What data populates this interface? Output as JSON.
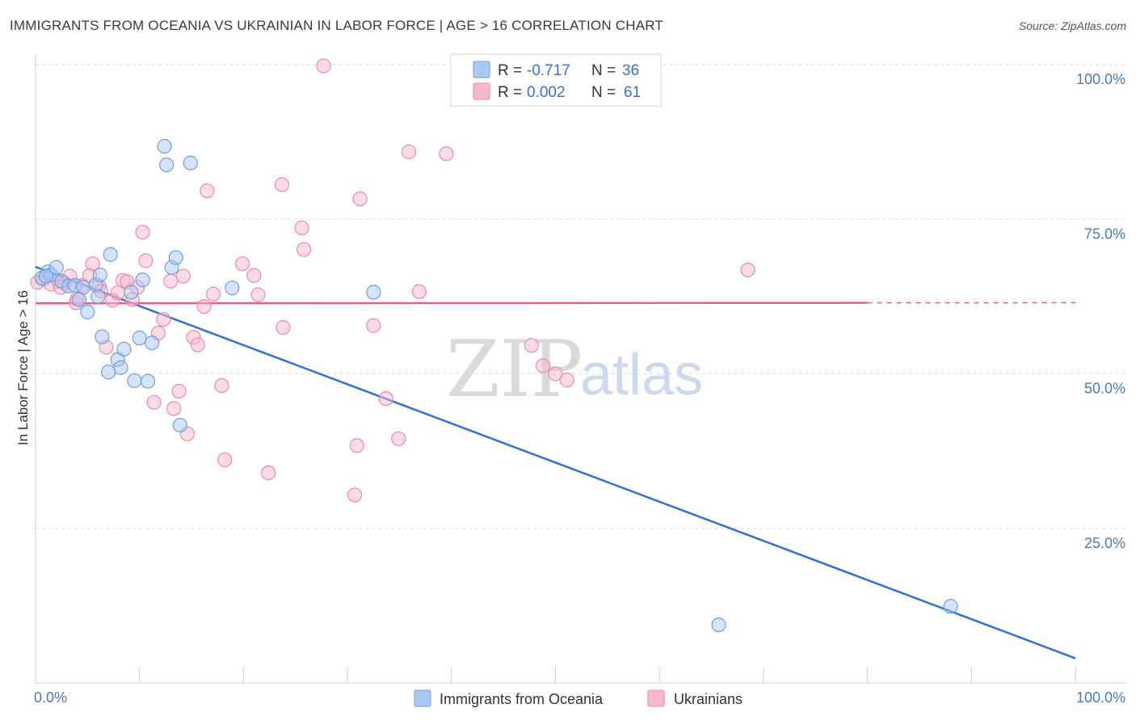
{
  "title": "IMMIGRANTS FROM OCEANIA VS UKRAINIAN IN LABOR FORCE | AGE > 16 CORRELATION CHART",
  "source": "Source: ZipAtlas.com",
  "watermark": {
    "zip": "ZIP",
    "atlas": "atlas"
  },
  "legend": {
    "rows": [
      {
        "r_label": "R =",
        "r_value": "-0.717",
        "n_label": "N =",
        "n_value": "36",
        "color": "#a9c8f2"
      },
      {
        "r_label": "R =",
        "r_value": "0.002",
        "n_label": "N =",
        "n_value": "61",
        "color": "#f7b7cc"
      }
    ]
  },
  "bottom_legend": [
    {
      "label": "Immigrants from Oceania",
      "color": "#a9c8f2"
    },
    {
      "label": "Ukrainians",
      "color": "#f7b7cc"
    }
  ],
  "chart_data": {
    "type": "scatter",
    "title": "IMMIGRANTS FROM OCEANIA VS UKRAINIAN IN LABOR FORCE | AGE > 16 CORRELATION CHART",
    "xlabel": "",
    "ylabel": "In Labor Force | Age > 16",
    "xlim": [
      0,
      100
    ],
    "ylim": [
      0,
      100
    ],
    "x_tick_labels": [
      "0.0%",
      "100.0%"
    ],
    "y_ticks": [
      25,
      50,
      75,
      100
    ],
    "y_tick_labels": [
      "25.0%",
      "50.0%",
      "75.0%",
      "100.0%"
    ],
    "grid": true,
    "series": [
      {
        "name": "Immigrants from Oceania",
        "color": "#a9c8f2",
        "stroke": "#6f9ee0",
        "trend_color": "#2f6fd6",
        "trend": {
          "x0": 0,
          "y0": 67.3,
          "x1": 100,
          "y1": 4.0,
          "dashed_from": null
        },
        "points": [
          [
            0.6,
            65.5
          ],
          [
            1.2,
            66.5
          ],
          [
            1.5,
            66.0
          ],
          [
            2.0,
            67.2
          ],
          [
            2.5,
            65.0
          ],
          [
            3.2,
            64.2
          ],
          [
            3.8,
            64.3
          ],
          [
            4.2,
            62.0
          ],
          [
            4.6,
            64.0
          ],
          [
            5.0,
            60.0
          ],
          [
            5.8,
            64.4
          ],
          [
            6.0,
            62.5
          ],
          [
            6.2,
            66.0
          ],
          [
            6.4,
            56.0
          ],
          [
            7.0,
            50.3
          ],
          [
            7.2,
            69.3
          ],
          [
            7.9,
            52.3
          ],
          [
            8.2,
            51.0
          ],
          [
            8.5,
            54.0
          ],
          [
            9.2,
            63.2
          ],
          [
            9.5,
            48.9
          ],
          [
            10.0,
            55.8
          ],
          [
            10.3,
            65.2
          ],
          [
            10.8,
            48.8
          ],
          [
            11.2,
            55.0
          ],
          [
            12.4,
            86.8
          ],
          [
            12.6,
            83.8
          ],
          [
            13.1,
            67.2
          ],
          [
            13.5,
            68.8
          ],
          [
            13.9,
            41.7
          ],
          [
            14.9,
            84.1
          ],
          [
            18.9,
            63.9
          ],
          [
            32.5,
            63.2
          ],
          [
            65.7,
            9.4
          ],
          [
            88.0,
            12.4
          ],
          [
            1.0,
            65.8
          ]
        ]
      },
      {
        "name": "Ukrainians",
        "color": "#f7b7cc",
        "stroke": "#e98aaa",
        "trend_color": "#e0608a",
        "trend": {
          "x0": 0,
          "y0": 61.4,
          "x1": 100,
          "y1": 61.5,
          "dashed_from": 80
        },
        "points": [
          [
            0.2,
            64.8
          ],
          [
            0.8,
            65.3
          ],
          [
            1.5,
            64.5
          ],
          [
            2.2,
            65.0
          ],
          [
            2.8,
            64.6
          ],
          [
            3.3,
            65.8
          ],
          [
            3.9,
            61.5
          ],
          [
            4.5,
            64.3
          ],
          [
            5.2,
            65.9
          ],
          [
            5.5,
            67.8
          ],
          [
            6.1,
            64.2
          ],
          [
            6.3,
            63.4
          ],
          [
            6.8,
            54.3
          ],
          [
            7.4,
            61.9
          ],
          [
            7.9,
            63.1
          ],
          [
            8.4,
            65.1
          ],
          [
            8.8,
            64.9
          ],
          [
            9.3,
            62.0
          ],
          [
            9.8,
            64.0
          ],
          [
            10.3,
            72.9
          ],
          [
            10.6,
            68.3
          ],
          [
            11.4,
            45.4
          ],
          [
            11.8,
            56.6
          ],
          [
            12.3,
            58.8
          ],
          [
            13.0,
            65.0
          ],
          [
            13.3,
            44.4
          ],
          [
            13.8,
            47.2
          ],
          [
            14.2,
            65.8
          ],
          [
            14.6,
            40.3
          ],
          [
            15.2,
            55.9
          ],
          [
            15.6,
            54.7
          ],
          [
            16.2,
            60.9
          ],
          [
            16.5,
            79.6
          ],
          [
            17.1,
            62.9
          ],
          [
            17.9,
            48.1
          ],
          [
            18.2,
            36.1
          ],
          [
            19.9,
            67.8
          ],
          [
            21.0,
            65.9
          ],
          [
            21.4,
            62.8
          ],
          [
            22.4,
            34.0
          ],
          [
            23.7,
            80.6
          ],
          [
            23.8,
            57.5
          ],
          [
            25.6,
            73.6
          ],
          [
            25.8,
            70.1
          ],
          [
            27.7,
            99.8
          ],
          [
            30.7,
            30.4
          ],
          [
            30.9,
            38.4
          ],
          [
            31.2,
            78.3
          ],
          [
            32.5,
            57.8
          ],
          [
            33.7,
            46.0
          ],
          [
            34.9,
            39.5
          ],
          [
            35.9,
            85.9
          ],
          [
            36.9,
            63.3
          ],
          [
            39.5,
            85.6
          ],
          [
            47.7,
            54.6
          ],
          [
            48.8,
            51.3
          ],
          [
            50.0,
            50.0
          ],
          [
            51.1,
            49.0
          ],
          [
            68.5,
            66.8
          ],
          [
            2.4,
            64.0
          ],
          [
            4.0,
            62.1
          ]
        ]
      }
    ]
  }
}
